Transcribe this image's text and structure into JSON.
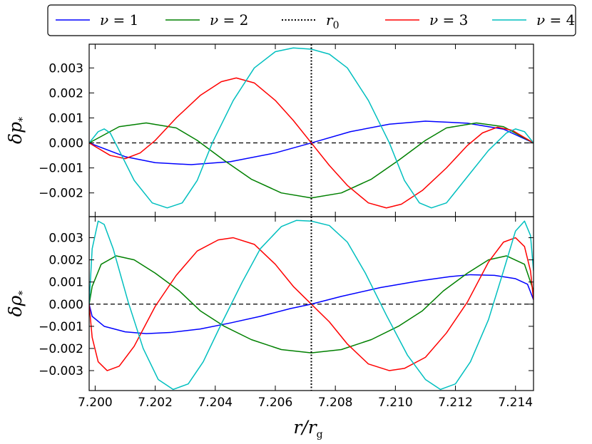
{
  "chart_data": {
    "type": "line",
    "legend": {
      "placement": "top-outside",
      "entries": [
        {
          "key": "nu1",
          "math": "ν",
          "eq": " = ",
          "num": "1",
          "color": "#0000ff",
          "style": "solid"
        },
        {
          "key": "nu2",
          "math": "ν",
          "eq": " = ",
          "num": "2",
          "color": "#008000",
          "style": "solid"
        },
        {
          "key": "r0",
          "math": "r",
          "sub": "0",
          "color": "#000000",
          "style": "dotted"
        },
        {
          "key": "nu3",
          "math": "ν",
          "eq": " = ",
          "num": "3",
          "color": "#ff0000",
          "style": "solid"
        },
        {
          "key": "nu4",
          "math": "ν",
          "eq": " = ",
          "num": "4",
          "color": "#00bfbf",
          "style": "solid"
        }
      ]
    },
    "x": {
      "label_main": "r/r",
      "label_sub": "g",
      "lim": [
        7.1998,
        7.2146
      ],
      "ticks": [
        7.2,
        7.202,
        7.204,
        7.206,
        7.208,
        7.21,
        7.212,
        7.214
      ],
      "tick_labels": [
        "7.200",
        "7.202",
        "7.204",
        "7.206",
        "7.208",
        "7.210",
        "7.212",
        "7.214"
      ]
    },
    "r0": 7.2072,
    "panels": [
      {
        "key": "dp",
        "ylabel_main": "δp",
        "ylabel_sub": "*",
        "ylim": [
          -0.00295,
          0.00395
        ],
        "ticks": [
          -0.002,
          -0.001,
          0.0,
          0.001,
          0.002,
          0.003
        ],
        "tick_labels": [
          "−0.002",
          "−0.001",
          "0.000",
          "0.001",
          "0.002",
          "0.003"
        ],
        "zero_line": "dashed",
        "series": [
          {
            "key": "nu1",
            "color": "#0000ff",
            "points": [
              [
                7.1998,
                0
              ],
              [
                7.201,
                -0.00055
              ],
              [
                7.202,
                -0.00079
              ],
              [
                7.2032,
                -0.00087
              ],
              [
                7.2045,
                -0.00075
              ],
              [
                7.206,
                -0.0004
              ],
              [
                7.2072,
                0
              ],
              [
                7.2085,
                0.00045
              ],
              [
                7.2098,
                0.00075
              ],
              [
                7.211,
                0.00087
              ],
              [
                7.2124,
                0.00079
              ],
              [
                7.2136,
                0.00055
              ],
              [
                7.2146,
                0
              ]
            ]
          },
          {
            "key": "nu2",
            "color": "#008000",
            "points": [
              [
                7.1998,
                0
              ],
              [
                7.2008,
                0.00065
              ],
              [
                7.2017,
                0.0008
              ],
              [
                7.2027,
                0.0006
              ],
              [
                7.2034,
                0.0001
              ],
              [
                7.2043,
                -0.0007
              ],
              [
                7.2052,
                -0.00145
              ],
              [
                7.2062,
                -0.002
              ],
              [
                7.2072,
                -0.0022
              ],
              [
                7.2082,
                -0.002
              ],
              [
                7.2092,
                -0.00145
              ],
              [
                7.2101,
                -0.0007
              ],
              [
                7.211,
                0.0001
              ],
              [
                7.2117,
                0.0006
              ],
              [
                7.2127,
                0.0008
              ],
              [
                7.2136,
                0.00065
              ],
              [
                7.2146,
                0
              ]
            ]
          },
          {
            "key": "nu3",
            "color": "#ff0000",
            "points": [
              [
                7.1998,
                0
              ],
              [
                7.2005,
                -0.0005
              ],
              [
                7.201,
                -0.00063
              ],
              [
                7.2015,
                -0.0004
              ],
              [
                7.202,
                0.0001
              ],
              [
                7.2027,
                0.001
              ],
              [
                7.2035,
                0.0019
              ],
              [
                7.2042,
                0.00245
              ],
              [
                7.2047,
                0.0026
              ],
              [
                7.2053,
                0.0024
              ],
              [
                7.206,
                0.0017
              ],
              [
                7.2066,
                0.0009
              ],
              [
                7.2072,
                0
              ],
              [
                7.2078,
                -0.0009
              ],
              [
                7.2084,
                -0.0017
              ],
              [
                7.2091,
                -0.0024
              ],
              [
                7.2097,
                -0.0026
              ],
              [
                7.2102,
                -0.00245
              ],
              [
                7.2109,
                -0.0019
              ],
              [
                7.2117,
                -0.001
              ],
              [
                7.2124,
                -0.0001
              ],
              [
                7.2129,
                0.0004
              ],
              [
                7.2134,
                0.00063
              ],
              [
                7.2139,
                0.0005
              ],
              [
                7.2146,
                0
              ]
            ]
          },
          {
            "key": "nu4",
            "color": "#00bfbf",
            "points": [
              [
                7.1998,
                0
              ],
              [
                7.2001,
                0.00045
              ],
              [
                7.2003,
                0.00056
              ],
              [
                7.2005,
                0.0004
              ],
              [
                7.2008,
                -0.0003
              ],
              [
                7.2013,
                -0.0015
              ],
              [
                7.2019,
                -0.0024
              ],
              [
                7.2024,
                -0.0026
              ],
              [
                7.2029,
                -0.0024
              ],
              [
                7.2034,
                -0.0015
              ],
              [
                7.2039,
                0
              ],
              [
                7.2046,
                0.0017
              ],
              [
                7.2053,
                0.003
              ],
              [
                7.206,
                0.00365
              ],
              [
                7.2066,
                0.0038
              ],
              [
                7.2072,
                0.00375
              ],
              [
                7.2078,
                0.00355
              ],
              [
                7.2084,
                0.003
              ],
              [
                7.2091,
                0.0017
              ],
              [
                7.2098,
                0
              ],
              [
                7.2103,
                -0.0015
              ],
              [
                7.2108,
                -0.0024
              ],
              [
                7.2112,
                -0.0026
              ],
              [
                7.2117,
                -0.0024
              ],
              [
                7.2123,
                -0.0015
              ],
              [
                7.2131,
                -0.0003
              ],
              [
                7.2137,
                0.0004
              ],
              [
                7.214,
                0.00056
              ],
              [
                7.2143,
                0.00045
              ],
              [
                7.2146,
                0
              ]
            ]
          }
        ]
      },
      {
        "key": "drho",
        "ylabel_main": "δρ",
        "ylabel_sub": "*",
        "ylim": [
          -0.0039,
          0.00395
        ],
        "ticks": [
          -0.003,
          -0.002,
          -0.001,
          0.0,
          0.001,
          0.002,
          0.003
        ],
        "tick_labels": [
          "−0.003",
          "−0.002",
          "−0.001",
          "0.000",
          "0.001",
          "0.002",
          "0.003"
        ],
        "zero_line": "dashed",
        "series": [
          {
            "key": "nu1",
            "color": "#0000ff",
            "points": [
              [
                7.1998,
                0
              ],
              [
                7.1999,
                -0.00055
              ],
              [
                7.2003,
                -0.001
              ],
              [
                7.201,
                -0.00125
              ],
              [
                7.2017,
                -0.00133
              ],
              [
                7.2025,
                -0.00128
              ],
              [
                7.2035,
                -0.00112
              ],
              [
                7.2045,
                -0.00085
              ],
              [
                7.2055,
                -0.00055
              ],
              [
                7.2065,
                -0.0002
              ],
              [
                7.2072,
                0
              ],
              [
                7.2082,
                0.00035
              ],
              [
                7.2095,
                0.00075
              ],
              [
                7.2108,
                0.00105
              ],
              [
                7.2118,
                0.00124
              ],
              [
                7.2125,
                0.00133
              ],
              [
                7.2133,
                0.0013
              ],
              [
                7.214,
                0.00115
              ],
              [
                7.2144,
                0.0009
              ],
              [
                7.2146,
                0.0002
              ]
            ]
          },
          {
            "key": "nu2",
            "color": "#008000",
            "points": [
              [
                7.1998,
                0
              ],
              [
                7.1999,
                0.0008
              ],
              [
                7.2002,
                0.0018
              ],
              [
                7.2007,
                0.00218
              ],
              [
                7.2013,
                0.002
              ],
              [
                7.202,
                0.0014
              ],
              [
                7.2028,
                0.0006
              ],
              [
                7.2035,
                -0.0003
              ],
              [
                7.2043,
                -0.001
              ],
              [
                7.2052,
                -0.0016
              ],
              [
                7.2062,
                -0.00205
              ],
              [
                7.2072,
                -0.0022
              ],
              [
                7.2082,
                -0.00205
              ],
              [
                7.2092,
                -0.0016
              ],
              [
                7.2101,
                -0.001
              ],
              [
                7.2109,
                -0.0003
              ],
              [
                7.2116,
                0.0006
              ],
              [
                7.2124,
                0.0014
              ],
              [
                7.2131,
                0.002
              ],
              [
                7.2137,
                0.00218
              ],
              [
                7.2143,
                0.0018
              ],
              [
                7.2146,
                0.0006
              ]
            ]
          },
          {
            "key": "nu3",
            "color": "#ff0000",
            "points": [
              [
                7.1998,
                0
              ],
              [
                7.1999,
                -0.0015
              ],
              [
                7.2001,
                -0.0026
              ],
              [
                7.2004,
                -0.003
              ],
              [
                7.2008,
                -0.0028
              ],
              [
                7.2013,
                -0.0019
              ],
              [
                7.202,
                -0.0001
              ],
              [
                7.2027,
                0.0013
              ],
              [
                7.2034,
                0.0024
              ],
              [
                7.2041,
                0.0029
              ],
              [
                7.2046,
                0.003
              ],
              [
                7.2053,
                0.0027
              ],
              [
                7.206,
                0.0018
              ],
              [
                7.2066,
                0.0008
              ],
              [
                7.2072,
                0
              ],
              [
                7.2078,
                -0.0008
              ],
              [
                7.2084,
                -0.0018
              ],
              [
                7.2091,
                -0.0027
              ],
              [
                7.2098,
                -0.003
              ],
              [
                7.2103,
                -0.0029
              ],
              [
                7.211,
                -0.0024
              ],
              [
                7.2117,
                -0.0013
              ],
              [
                7.2124,
                0.0001
              ],
              [
                7.2131,
                0.0019
              ],
              [
                7.2136,
                0.0028
              ],
              [
                7.214,
                0.003
              ],
              [
                7.2143,
                0.0026
              ],
              [
                7.2145,
                0.0015
              ],
              [
                7.2146,
                0.0002
              ]
            ]
          },
          {
            "key": "nu4",
            "color": "#00bfbf",
            "points": [
              [
                7.1998,
                0
              ],
              [
                7.1999,
                0.0025
              ],
              [
                7.2001,
                0.00375
              ],
              [
                7.2003,
                0.0036
              ],
              [
                7.2006,
                0.0025
              ],
              [
                7.2011,
                0.0001
              ],
              [
                7.2016,
                -0.002
              ],
              [
                7.2021,
                -0.0034
              ],
              [
                7.2026,
                -0.00385
              ],
              [
                7.2031,
                -0.0036
              ],
              [
                7.2036,
                -0.0026
              ],
              [
                7.2042,
                -0.0009
              ],
              [
                7.2049,
                0.001
              ],
              [
                7.2055,
                0.0025
              ],
              [
                7.2062,
                0.0035
              ],
              [
                7.2067,
                0.00378
              ],
              [
                7.2072,
                0.00375
              ],
              [
                7.2078,
                0.00355
              ],
              [
                7.2084,
                0.0028
              ],
              [
                7.209,
                0.0014
              ],
              [
                7.2097,
                -0.0005
              ],
              [
                7.2104,
                -0.0023
              ],
              [
                7.211,
                -0.0034
              ],
              [
                7.2115,
                -0.00385
              ],
              [
                7.212,
                -0.0036
              ],
              [
                7.2125,
                -0.0026
              ],
              [
                7.2131,
                -0.0007
              ],
              [
                7.2136,
                0.0015
              ],
              [
                7.214,
                0.0033
              ],
              [
                7.2143,
                0.00375
              ],
              [
                7.2145,
                0.0031
              ],
              [
                7.2146,
                0.0015
              ]
            ]
          }
        ]
      }
    ]
  }
}
